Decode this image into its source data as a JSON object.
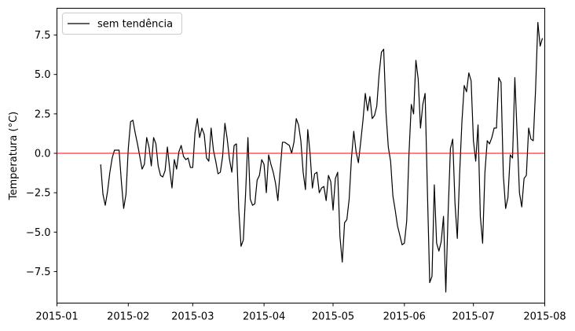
{
  "chart_data": {
    "type": "line",
    "title": "",
    "xlabel": "",
    "ylabel": "Temperatura (°C)",
    "xlim": [
      "2015-01-01",
      "2015-08-01"
    ],
    "ylim": [
      -9.5,
      9.2
    ],
    "x_ticks": [
      "2015-01-01",
      "2015-02-01",
      "2015-03-01",
      "2015-04-01",
      "2015-05-01",
      "2015-06-01",
      "2015-07-01",
      "2015-08-01"
    ],
    "x_tick_labels": [
      "2015-01",
      "2015-02",
      "2015-03",
      "2015-04",
      "2015-05",
      "2015-06",
      "2015-07",
      "2015-08"
    ],
    "y_ticks": [
      -7.5,
      -5.0,
      -2.5,
      0.0,
      2.5,
      5.0,
      7.5
    ],
    "y_tick_labels": [
      "−7.5",
      "−5.0",
      "−2.5",
      "0.0",
      "2.5",
      "5.0",
      "7.5"
    ],
    "grid": false,
    "legend_position": "top-left",
    "series": [
      {
        "name": "sem tendência",
        "color": "#000000",
        "start_date": "2015-01-20",
        "values": [
          -0.7,
          -2.6,
          -3.3,
          -2.4,
          -1.2,
          -0.3,
          0.2,
          0.2,
          0.2,
          -1.8,
          -3.5,
          -2.6,
          0.3,
          2.0,
          2.1,
          1.3,
          0.6,
          -0.2,
          -1.0,
          -0.7,
          1.0,
          0.4,
          -0.8,
          1.0,
          0.6,
          -0.8,
          -1.4,
          -1.5,
          -1.1,
          0.4,
          -1.0,
          -2.2,
          -0.4,
          -1.0,
          0.1,
          0.5,
          -0.2,
          -0.4,
          -0.3,
          -0.9,
          -0.9,
          1.3,
          2.2,
          1.0,
          1.6,
          1.2,
          -0.3,
          -0.5,
          1.6,
          0.2,
          -0.5,
          -1.3,
          -1.2,
          -0.2,
          1.9,
          0.9,
          -0.4,
          -1.2,
          0.5,
          0.6,
          -3.5,
          -5.9,
          -5.5,
          -2.5,
          1.0,
          -2.9,
          -3.3,
          -3.2,
          -1.7,
          -1.4,
          -0.4,
          -0.7,
          -2.5,
          -0.1,
          -0.7,
          -1.2,
          -1.9,
          -3.0,
          -1.1,
          0.7,
          0.7,
          0.6,
          0.5,
          0.0,
          0.7,
          2.2,
          1.8,
          0.8,
          -1.2,
          -2.3,
          1.5,
          0.0,
          -2.2,
          -1.3,
          -1.2,
          -2.5,
          -2.2,
          -2.1,
          -3.0,
          -1.4,
          -1.8,
          -3.6,
          -1.6,
          -1.2,
          -5.3,
          -6.9,
          -4.4,
          -4.2,
          -2.9,
          -0.3,
          1.4,
          0.1,
          -0.6,
          0.7,
          2.1,
          3.8,
          2.7,
          3.6,
          2.2,
          2.4,
          3.0,
          5.0,
          6.4,
          6.6,
          2.6,
          0.4,
          -0.5,
          -2.7,
          -3.6,
          -4.6,
          -5.2,
          -5.8,
          -5.7,
          -4.3,
          0.0,
          3.1,
          2.5,
          5.9,
          4.7,
          1.6,
          3.1,
          3.8,
          -2.4,
          -8.2,
          -7.8,
          -2.0,
          -5.7,
          -6.2,
          -5.6,
          -4.0,
          -8.8,
          -3.8,
          0.3,
          0.9,
          -3.2,
          -5.4,
          -1.3,
          2.0,
          4.3,
          3.9,
          5.1,
          4.6,
          0.8,
          -0.5,
          1.8,
          -4.0,
          -5.7,
          -1.2,
          0.8,
          0.6,
          1.0,
          1.6,
          1.6,
          4.8,
          4.5,
          -1.4,
          -3.5,
          -2.8,
          -0.1,
          -0.3,
          4.8,
          1.2,
          -2.5,
          -3.4,
          -1.6,
          -1.4,
          1.6,
          0.9,
          0.8,
          4.0,
          8.3,
          6.8,
          7.3
        ]
      },
      {
        "name": "",
        "color": "#ff0000",
        "constant": 0.0
      }
    ]
  }
}
